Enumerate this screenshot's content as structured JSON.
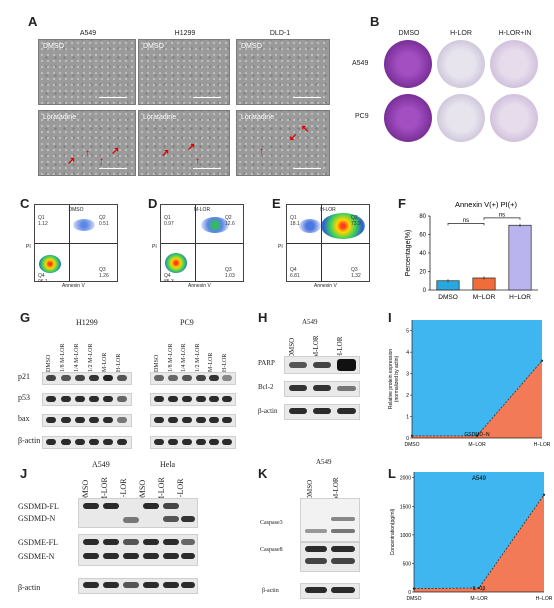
{
  "panels": {
    "A": {
      "letter": "A",
      "columns": [
        "A549",
        "H1299",
        "DLD-1"
      ],
      "row1_tag": "DMSO",
      "row2_tag": "Loratadine"
    },
    "B": {
      "letter": "B",
      "columns": [
        "DMSO",
        "H-LOR",
        "H-LOR+IN"
      ],
      "rows": [
        "A549",
        "PC9"
      ]
    },
    "C": {
      "letter": "C",
      "title": "DMSO",
      "q1": "Q1\n1.12",
      "q2": "Q2\n0.51",
      "q3": "Q3\n1.26",
      "q4": "Q4\n96.1",
      "xlabel": "Annexin V",
      "ylabel": "PI"
    },
    "D": {
      "letter": "D",
      "title": "M-LOR",
      "q1": "Q1\n0.97",
      "q2": "Q2\n12.6",
      "q3": "Q3\n1.03",
      "q4": "Q4\n85.3",
      "xlabel": "Annexin V",
      "ylabel": "PI"
    },
    "E": {
      "letter": "E",
      "title": "H-LOR",
      "q1": "Q1\n18.1",
      "q2": "Q2\n73.9",
      "q3": "Q3\n1.32",
      "q4": "Q4\n6.81",
      "xlabel": "Annexin V",
      "ylabel": "PI"
    },
    "F": {
      "letter": "F"
    },
    "G": {
      "letter": "G",
      "group1": "H1299",
      "group2": "PC9",
      "lanes": [
        "DMSO",
        "1/8 M-LOR",
        "1/4 M-LOR",
        "1/2 M-LOR",
        "M-LOR",
        "H-LOR"
      ],
      "rows": [
        "p21",
        "p53",
        "bax",
        "β-actin"
      ]
    },
    "H": {
      "letter": "H",
      "group": "A549",
      "lanes": [
        "DMSO",
        "M-LOR",
        "H-LOR"
      ],
      "rows": [
        "PARP",
        "Bcl-2",
        "β-actin"
      ]
    },
    "I": {
      "letter": "I"
    },
    "J": {
      "letter": "J",
      "group1": "A549",
      "group2": "Hela",
      "lanes": [
        "DMSO",
        "M-LOR",
        "H-LOR"
      ],
      "rows": [
        "GSDMD-FL",
        "GSDMD-N",
        "GSDME-FL",
        "GSDME-N",
        "β-actin"
      ]
    },
    "K": {
      "letter": "K",
      "group": "A549",
      "lanes": [
        "DMSO",
        "M-LOR"
      ],
      "rows": [
        "Caspase3",
        "Caspase8",
        "β-actin"
      ]
    },
    "L": {
      "letter": "L"
    }
  },
  "chart_data": [
    {
      "panel": "F",
      "type": "bar",
      "title": "Annexin V(+) PI(+)",
      "ylabel": "Percentage(%)",
      "categories": [
        "DMSO",
        "M−LOR",
        "H−LOR"
      ],
      "values": [
        10,
        13,
        70
      ],
      "colors": [
        "#29a8e0",
        "#f26b3a",
        "#b9b4ee"
      ],
      "ylim": [
        0,
        80
      ],
      "yticks": [
        0,
        20,
        40,
        60,
        80
      ],
      "annotations": [
        "ns",
        "ns"
      ]
    },
    {
      "panel": "I",
      "type": "area",
      "inner_label": "GSDMD−N",
      "ylabel": "Relative protein expression\n(normalized by actin)",
      "categories": [
        "DMSO",
        "M−LOR",
        "H−LOR"
      ],
      "values": [
        0.1,
        0.1,
        3.6
      ],
      "ylim": [
        0,
        5.5
      ],
      "yticks": [
        0,
        1,
        2,
        3,
        4,
        5
      ],
      "colors": {
        "top": "#3fb6ef",
        "bottom": "#f27a56"
      }
    },
    {
      "panel": "L",
      "type": "area",
      "title": "A549",
      "inner_label": "IL−1β",
      "ylabel": "Concentration(pg/ml)",
      "categories": [
        "DMSO",
        "M−LOR",
        "H−LOR"
      ],
      "values": [
        60,
        70,
        1700
      ],
      "ylim": [
        0,
        2100
      ],
      "yticks": [
        0,
        500,
        1000,
        1500,
        2000
      ],
      "colors": {
        "top": "#3fb6ef",
        "bottom": "#f27a56"
      }
    }
  ]
}
